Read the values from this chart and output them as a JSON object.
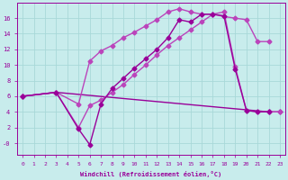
{
  "xlabel": "Windchill (Refroidissement éolien,°C)",
  "background_color": "#c8ecec",
  "grid_color": "#a8d8d8",
  "line_color": "#990099",
  "line_color2": "#bb44bb",
  "xlim": [
    -0.5,
    23.5
  ],
  "ylim": [
    -1.5,
    18.0
  ],
  "yticks": [
    0,
    2,
    4,
    6,
    8,
    10,
    12,
    14,
    16
  ],
  "ytick_labels": [
    "-0",
    "2",
    "4",
    "6",
    "8",
    "10",
    "12",
    "14",
    "16"
  ],
  "xticks": [
    0,
    1,
    2,
    3,
    4,
    5,
    6,
    7,
    8,
    9,
    10,
    11,
    12,
    13,
    14,
    15,
    16,
    17,
    18,
    19,
    20,
    21,
    22,
    23
  ],
  "line1_x": [
    0,
    3,
    22,
    23
  ],
  "line1_y": [
    6.0,
    6.5,
    4.0,
    4.0
  ],
  "line2_x": [
    0,
    3,
    5,
    6,
    7,
    8,
    9,
    10,
    11,
    12,
    13,
    14,
    15,
    16,
    17,
    18,
    19,
    20,
    21,
    22,
    23
  ],
  "line2_y": [
    6.0,
    6.5,
    2.0,
    4.8,
    5.5,
    6.5,
    7.5,
    8.8,
    10.0,
    11.3,
    12.5,
    13.5,
    14.5,
    15.5,
    16.5,
    16.8,
    9.8,
    4.2,
    4.0,
    4.0,
    4.0
  ],
  "line3_x": [
    0,
    3,
    5,
    6,
    7,
    8,
    9,
    10,
    11,
    12,
    13,
    14,
    15,
    16,
    17,
    18,
    19,
    20,
    21,
    22
  ],
  "line3_y": [
    6.0,
    6.5,
    5.0,
    10.5,
    11.8,
    12.5,
    13.5,
    14.2,
    15.0,
    15.8,
    16.8,
    17.2,
    16.8,
    16.5,
    16.5,
    16.2,
    16.0,
    15.8,
    13.0,
    13.0
  ],
  "line4_x": [
    0,
    3,
    5,
    6,
    7,
    8,
    9,
    10,
    11,
    12,
    13,
    14,
    15,
    16,
    17,
    18,
    19,
    20,
    21,
    22
  ],
  "line4_y": [
    6.0,
    6.5,
    1.8,
    -0.2,
    5.0,
    7.0,
    8.3,
    9.6,
    10.8,
    12.0,
    13.5,
    15.8,
    15.5,
    16.5,
    16.5,
    16.3,
    9.5,
    4.2,
    4.0,
    4.0
  ],
  "marker": "D",
  "markersize": 2.5,
  "linewidth": 1.0
}
